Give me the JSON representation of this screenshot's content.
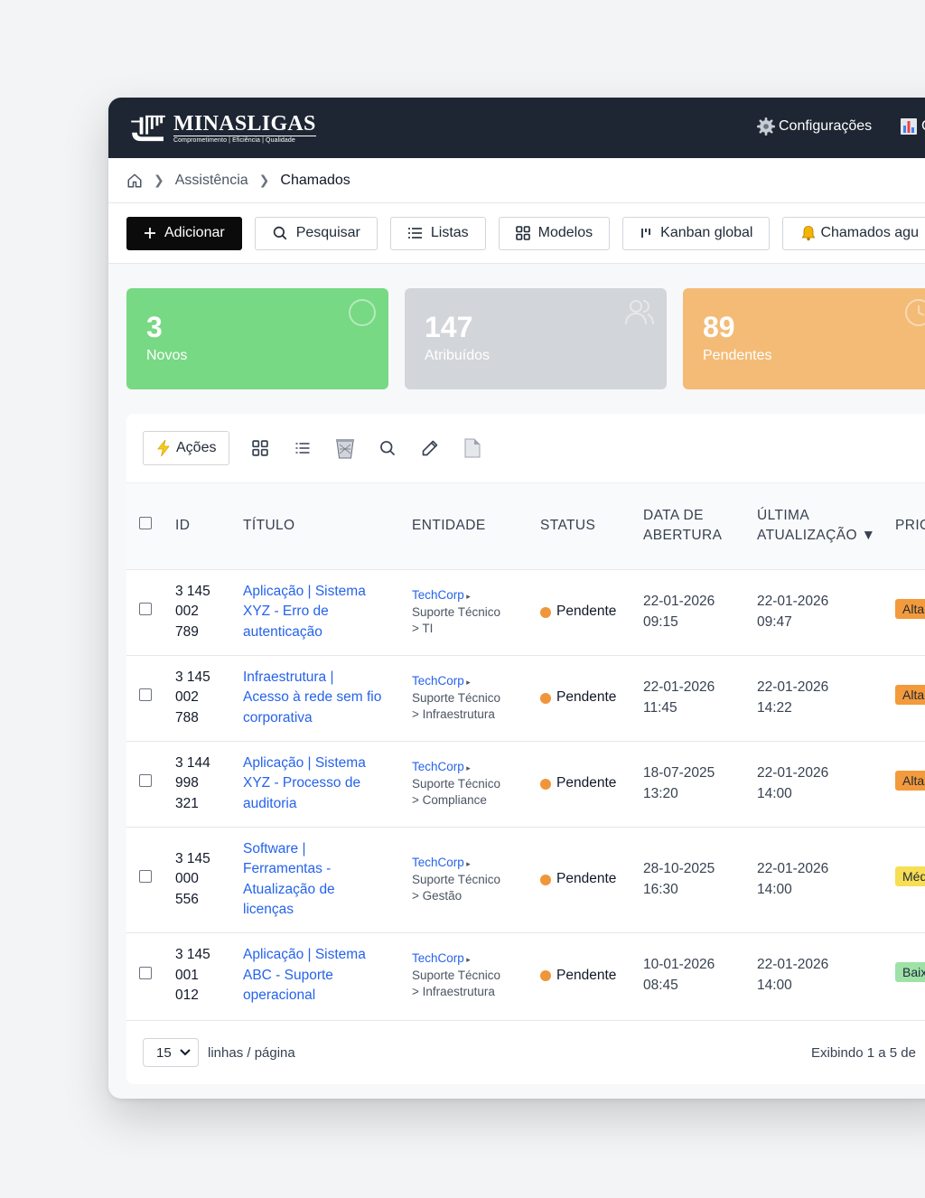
{
  "brand": {
    "name": "MINASLIGAS",
    "tagline": "Comprometimento | Eficiência | Qualidade"
  },
  "top_menu": {
    "settings_label": "Configurações",
    "next_label": "C"
  },
  "breadcrumb": {
    "items": [
      "Assistência",
      "Chamados"
    ]
  },
  "toolbar": {
    "add": "Adicionar",
    "search": "Pesquisar",
    "lists": "Listas",
    "models": "Modelos",
    "kanban": "Kanban global",
    "pending": "Chamados agu"
  },
  "cards": [
    {
      "value": "3",
      "label": "Novos",
      "color": "#77d983",
      "icon": "circle-icon"
    },
    {
      "value": "147",
      "label": "Atribuídos",
      "color": "#d2d5d9",
      "icon": "users-icon"
    },
    {
      "value": "89",
      "label": "Pendentes",
      "color": "#f4bb76",
      "icon": "clock-icon"
    }
  ],
  "panel_tools": {
    "actions_label": "Ações"
  },
  "table": {
    "headers": {
      "id": "ID",
      "title": "TÍTULO",
      "entity": "ENTIDADE",
      "status": "STATUS",
      "opened_1": "DATA DE",
      "opened_2": "ABERTURA",
      "updated_1": "ÚLTIMA",
      "updated_2": "ATUALIZAÇÃO ▼",
      "priority": "PRIO"
    },
    "rows": [
      {
        "id": [
          "3 145",
          "002",
          "789"
        ],
        "title": [
          "Aplicação | Sistema",
          "XYZ - Erro de",
          "autenticação"
        ],
        "entity_corp": "TechCorp",
        "entity_path": [
          "Suporte Técnico",
          "> TI"
        ],
        "status": "Pendente",
        "opened": [
          "22-01-2026",
          "09:15"
        ],
        "updated": [
          "22-01-2026",
          "09:47"
        ],
        "priority": "Alta",
        "priority_color": "#f39a3c"
      },
      {
        "id": [
          "3 145",
          "002",
          "788"
        ],
        "title": [
          "Infraestrutura |",
          "Acesso à rede sem fio",
          "corporativa"
        ],
        "entity_corp": "TechCorp",
        "entity_path": [
          "Suporte Técnico",
          "> Infraestrutura"
        ],
        "status": "Pendente",
        "opened": [
          "22-01-2026",
          "11:45"
        ],
        "updated": [
          "22-01-2026",
          "14:22"
        ],
        "priority": "Alta",
        "priority_color": "#f39a3c"
      },
      {
        "id": [
          "3 144",
          "998",
          "321"
        ],
        "title": [
          "Aplicação | Sistema",
          "XYZ - Processo de",
          "auditoria"
        ],
        "entity_corp": "TechCorp",
        "entity_path": [
          "Suporte Técnico",
          "> Compliance"
        ],
        "status": "Pendente",
        "opened": [
          "18-07-2025",
          "13:20"
        ],
        "updated": [
          "22-01-2026",
          "14:00"
        ],
        "priority": "Alta",
        "priority_color": "#f39a3c"
      },
      {
        "id": [
          "3 145",
          "000",
          "556"
        ],
        "title": [
          "Software |",
          "Ferramentas -",
          "Atualização de",
          "licenças"
        ],
        "entity_corp": "TechCorp",
        "entity_path": [
          "Suporte Técnico",
          "> Gestão"
        ],
        "status": "Pendente",
        "opened": [
          "28-10-2025",
          "16:30"
        ],
        "updated": [
          "22-01-2026",
          "14:00"
        ],
        "priority": "Média",
        "priority_color": "#f7de55"
      },
      {
        "id": [
          "3 145",
          "001",
          "012"
        ],
        "title": [
          "Aplicação | Sistema",
          "ABC - Suporte",
          "operacional"
        ],
        "entity_corp": "TechCorp",
        "entity_path": [
          "Suporte Técnico",
          "> Infraestrutura"
        ],
        "status": "Pendente",
        "opened": [
          "10-01-2026",
          "08:45"
        ],
        "updated": [
          "22-01-2026",
          "14:00"
        ],
        "priority": "Baixa",
        "priority_color": "#9ee2a7"
      }
    ]
  },
  "footer": {
    "page_size": "15",
    "per_page_label": "linhas / página",
    "showing": "Exibindo 1 a 5 de"
  }
}
